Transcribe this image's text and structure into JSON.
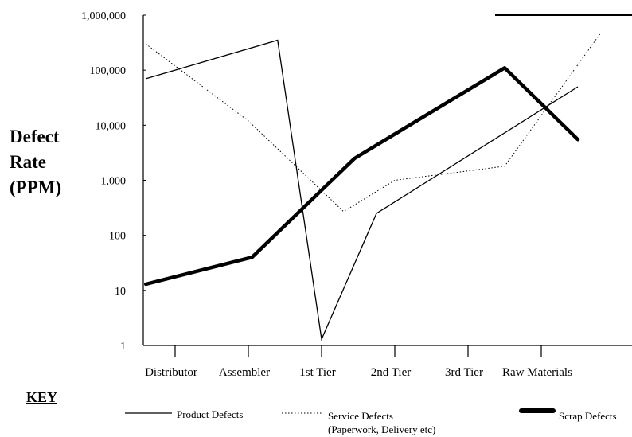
{
  "chart_data": {
    "type": "line",
    "title": "",
    "xlabel": "",
    "ylabel_lines": [
      "Defect",
      "Rate",
      "(PPM)"
    ],
    "y_scale": "log",
    "ylim": [
      1,
      1000000
    ],
    "y_ticks": [
      {
        "value": 1,
        "label": "1"
      },
      {
        "value": 10,
        "label": "10"
      },
      {
        "value": 100,
        "label": "100"
      },
      {
        "value": 1000,
        "label": "1,000"
      },
      {
        "value": 10000,
        "label": "10,000"
      },
      {
        "value": 100000,
        "label": "100,000"
      },
      {
        "value": 1000000,
        "label": "1,000,000"
      }
    ],
    "categories": [
      "Distributor",
      "Assembler",
      "1st Tier",
      "2nd Tier",
      "3rd Tier",
      "Raw Materials"
    ],
    "grid": false,
    "legend_position": "bottom",
    "legend_title": "KEY",
    "series": [
      {
        "name": "Product Defects",
        "style": "thin-solid",
        "x": [
          -0.4,
          1.4,
          2.0,
          2.75,
          5.5
        ],
        "y": [
          70000,
          350000,
          1.3,
          250,
          50000
        ]
      },
      {
        "name": "Service Defects",
        "sublabel": "(Paperwork, Delivery etc)",
        "style": "dotted",
        "x": [
          -0.4,
          1.0,
          2.3,
          3.0,
          4.5,
          5.8
        ],
        "y": [
          300000,
          12000,
          270,
          1000,
          1800,
          450000
        ]
      },
      {
        "name": "Scrap Defects",
        "style": "thick-solid",
        "x": [
          -0.4,
          1.05,
          2.45,
          3.2,
          4.5,
          5.5
        ],
        "y": [
          13,
          40,
          2500,
          10000,
          110000,
          5500
        ]
      }
    ]
  }
}
